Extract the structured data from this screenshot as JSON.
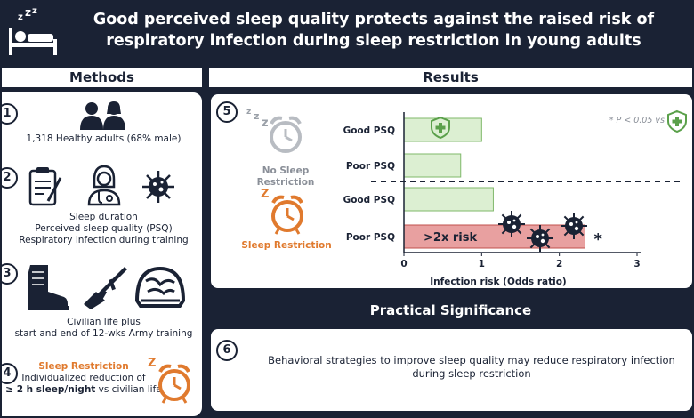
{
  "header": {
    "title_line1": "Good perceived sleep quality protects against the raised risk of",
    "title_line2": "respiratory infection during sleep restriction in young adults"
  },
  "methods": {
    "heading": "Methods",
    "step1": {
      "num": "1",
      "text": "1,318 Healthy adults (68% male)"
    },
    "step2": {
      "num": "2",
      "line1": "Sleep duration",
      "line2": "Perceived sleep quality (PSQ)",
      "line3": "Respiratory infection during training"
    },
    "step3": {
      "num": "3",
      "line1": "Civilian life plus",
      "line2": "start and end of 12-wks Army training"
    },
    "step4": {
      "num": "4",
      "title": "Sleep Restriction",
      "line1": "Individualized reduction of",
      "line2_bold": "≥ 2 h sleep/night",
      "line2_rest": " vs civilian life"
    }
  },
  "results": {
    "heading": "Results",
    "num": "5",
    "no_restriction_label": "No Sleep Restriction",
    "restriction_label": "Sleep Restriction",
    "note": "* P < 0.05 vs",
    "risk_label": ">2x risk",
    "star": "*"
  },
  "chart_data": {
    "type": "bar",
    "orientation": "horizontal",
    "categories": [
      "Good PSQ",
      "Poor PSQ",
      "Good PSQ",
      "Poor PSQ"
    ],
    "groups": [
      "No Sleep Restriction",
      "No Sleep Restriction",
      "Sleep Restriction",
      "Sleep Restriction"
    ],
    "values": [
      1.0,
      0.73,
      1.15,
      2.33
    ],
    "xlabel": "Infection risk (Odds ratio)",
    "xlim": [
      0,
      3
    ],
    "xticks": [
      "0",
      "1",
      "2",
      "3"
    ],
    "colors": {
      "normal": "#dcefd2",
      "normal_edge": "#7fb86a",
      "highlight": "#e8a0a0",
      "highlight_edge": "#c0504d"
    }
  },
  "practical": {
    "heading": "Practical Significance",
    "num": "6",
    "line1": "Behavioral strategies to improve sleep quality may reduce respiratory infection",
    "line2": "during sleep restriction"
  }
}
